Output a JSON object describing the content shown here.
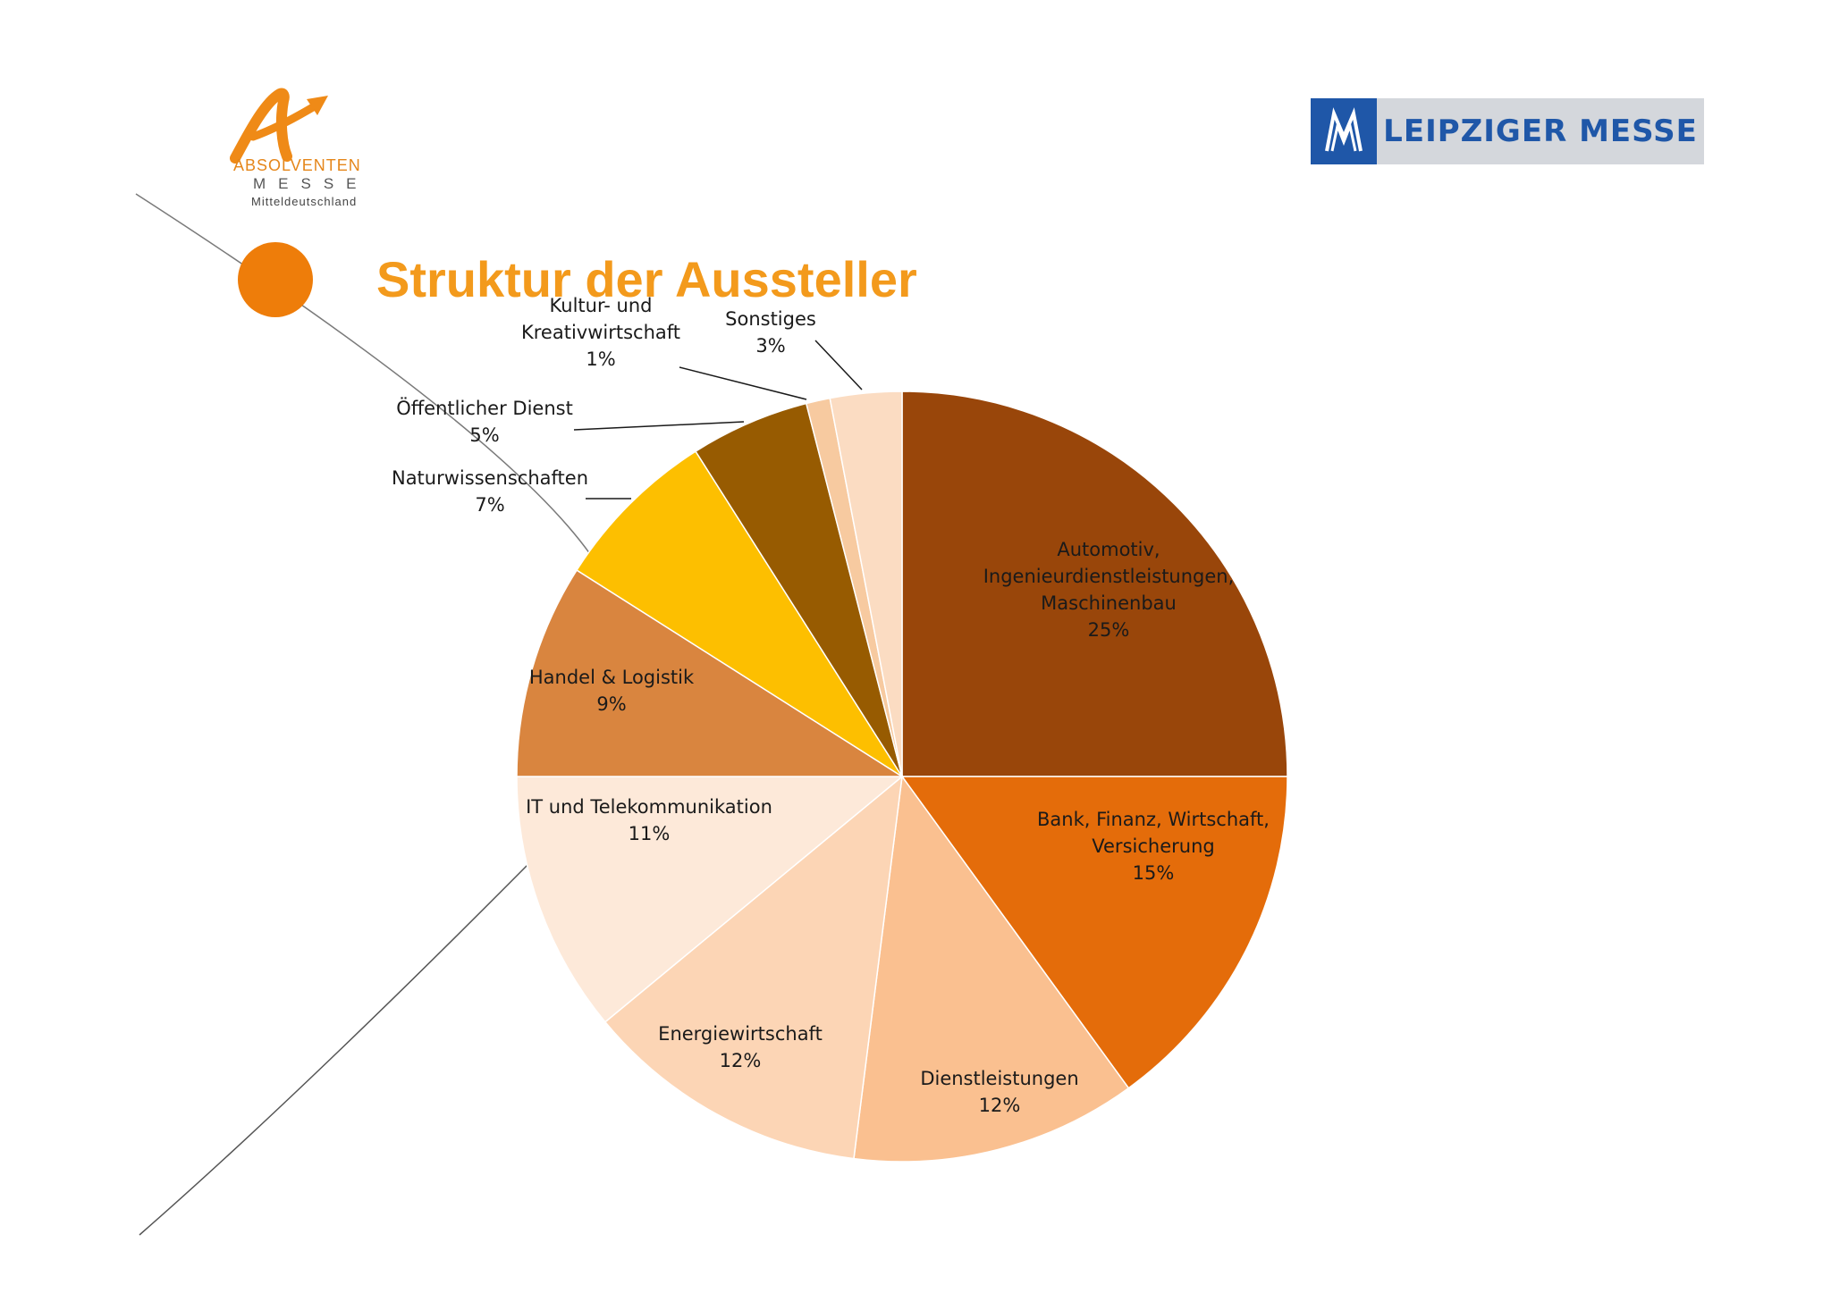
{
  "header": {
    "logo_left": {
      "name": "Absolventen Messe Mitteldeutschland",
      "line1": "ABSOLVENTEN",
      "line2": "MESSE",
      "line3": "Mitteldeutschland",
      "color": "#e5861a"
    },
    "logo_right": {
      "text": "LEIPZIGER MESSE",
      "color": "#1f57a8"
    }
  },
  "title": "Struktur der Aussteller",
  "chart_data": {
    "type": "pie",
    "title": "Struktur der Aussteller",
    "start_angle_deg": 0,
    "direction": "clockwise",
    "slices": [
      {
        "label": "Automotiv, Ingenieurdienstleistungen, Maschinenbau",
        "lines": [
          "Automotiv,",
          "Ingenieurdienstleistungen,",
          "Maschinenbau"
        ],
        "pct": "25%",
        "value": 25,
        "color": "#99460a"
      },
      {
        "label": "Bank, Finanz, Wirtschaft, Versicherung",
        "lines": [
          "Bank, Finanz, Wirtschaft,",
          "Versicherung"
        ],
        "pct": "15%",
        "value": 15,
        "color": "#e46c0a"
      },
      {
        "label": "Dienstleistungen",
        "lines": [
          "Dienstleistungen"
        ],
        "pct": "12%",
        "value": 12,
        "color": "#fac090"
      },
      {
        "label": "Energiewirtschaft",
        "lines": [
          "Energiewirtschaft"
        ],
        "pct": "12%",
        "value": 12,
        "color": "#fcd5b5"
      },
      {
        "label": "IT und Telekommunikation",
        "lines": [
          "IT und Telekommunikation"
        ],
        "pct": "11%",
        "value": 11,
        "color": "#fde9d9"
      },
      {
        "label": "Handel & Logistik",
        "lines": [
          "Handel & Logistik"
        ],
        "pct": "9%",
        "value": 9,
        "color": "#d9853f"
      },
      {
        "label": "Naturwissenschaften",
        "lines": [
          "Naturwissenschaften"
        ],
        "pct": "7%",
        "value": 7,
        "color": "#fdbf00"
      },
      {
        "label": "Öffentlicher Dienst",
        "lines": [
          "Öffentlicher Dienst"
        ],
        "pct": "5%",
        "value": 5,
        "color": "#975b01"
      },
      {
        "label": "Kultur- und Kreativwirtschaft",
        "lines": [
          "Kultur- und",
          "Kreativwirtschaft"
        ],
        "pct": "1%",
        "value": 1,
        "color": "#f7caa0"
      },
      {
        "label": "Sonstiges",
        "lines": [
          "Sonstiges"
        ],
        "pct": "3%",
        "value": 3,
        "color": "#fbdcc2"
      }
    ]
  }
}
